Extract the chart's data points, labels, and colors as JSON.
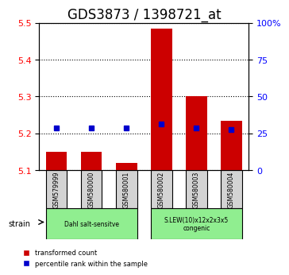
{
  "title": "GDS3873 / 1398721_at",
  "samples": [
    "GSM579999",
    "GSM580000",
    "GSM580001",
    "GSM580002",
    "GSM580003",
    "GSM580004"
  ],
  "red_values": [
    5.15,
    5.15,
    5.12,
    5.485,
    5.3,
    5.235
  ],
  "blue_values": [
    5.215,
    5.215,
    5.215,
    5.225,
    5.215,
    5.21
  ],
  "red_baseline": 5.1,
  "ylim_left": [
    5.1,
    5.5
  ],
  "ylim_right": [
    0,
    100
  ],
  "yticks_left": [
    5.1,
    5.2,
    5.3,
    5.4,
    5.5
  ],
  "yticks_right": [
    0,
    25,
    50,
    75,
    100
  ],
  "ytick_labels_right": [
    "0",
    "25",
    "50",
    "75",
    "100%"
  ],
  "groups": [
    {
      "label": "Dahl salt-sensitve",
      "indices": [
        0,
        1,
        2
      ],
      "color": "#90ee90"
    },
    {
      "label": "S.LEW(10)x12x2x3x5\ncongenic",
      "indices": [
        3,
        4,
        5
      ],
      "color": "#90ee90"
    }
  ],
  "bar_color": "#cc0000",
  "blue_color": "#0000cc",
  "bar_width": 0.6,
  "blue_marker_size": 8,
  "legend_items": [
    {
      "color": "#cc0000",
      "label": "transformed count"
    },
    {
      "color": "#0000cc",
      "label": "percentile rank within the sample"
    }
  ],
  "grid_color": "#000000",
  "axis_bg": "#f0f0f0",
  "strain_label": "strain",
  "title_fontsize": 12,
  "tick_fontsize": 8,
  "label_fontsize": 8
}
